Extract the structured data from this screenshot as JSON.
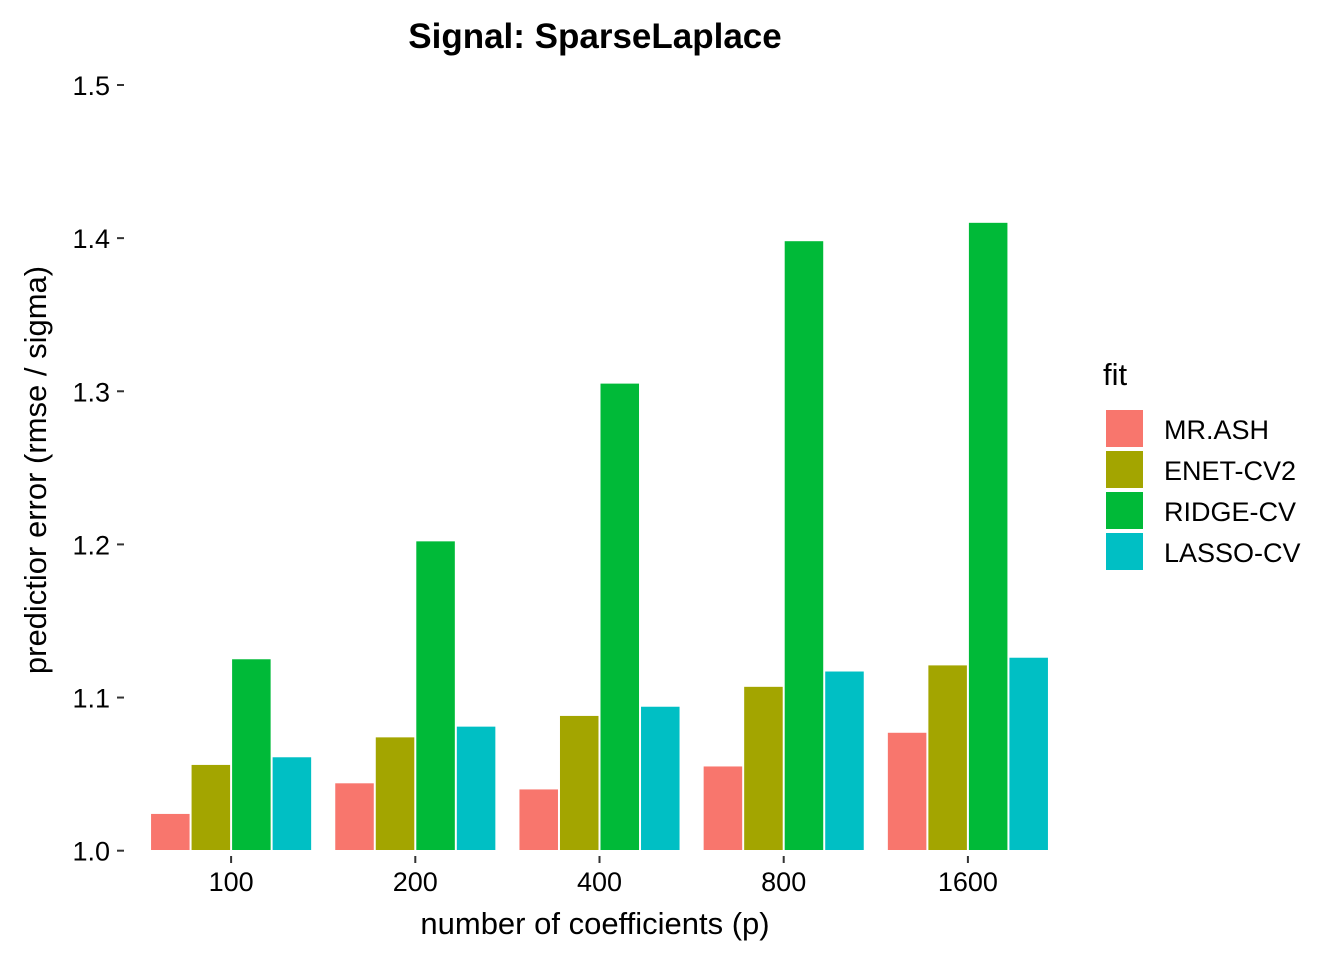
{
  "chart_data": {
    "type": "bar",
    "title": "Signal: SparseLaplace",
    "xlabel": "number of coefficients (p)",
    "ylabel": "predictior error (rmse / sigma)",
    "ylim": [
      0.99,
      1.5
    ],
    "yticks": [
      1.0,
      1.1,
      1.2,
      1.3,
      1.4,
      1.5
    ],
    "ytick_labels": [
      "1.0",
      "1.1",
      "1.2",
      "1.3",
      "1.4",
      "1.5"
    ],
    "categories": [
      "100",
      "200",
      "400",
      "800",
      "1600"
    ],
    "grid": false,
    "legend": {
      "title": "fit",
      "position": "right"
    },
    "series": [
      {
        "name": "MR.ASH",
        "color": "#F8766D",
        "values": [
          1.024,
          1.044,
          1.04,
          1.055,
          1.077
        ]
      },
      {
        "name": "ENET-CV2",
        "color": "#A3A500",
        "values": [
          1.056,
          1.074,
          1.088,
          1.107,
          1.121
        ]
      },
      {
        "name": "RIDGE-CV",
        "color": "#00BA38",
        "values": [
          1.125,
          1.202,
          1.305,
          1.398,
          1.41
        ]
      },
      {
        "name": "LASSO-CV",
        "color": "#00BFC4",
        "values": [
          1.061,
          1.081,
          1.094,
          1.117,
          1.126
        ]
      }
    ]
  }
}
